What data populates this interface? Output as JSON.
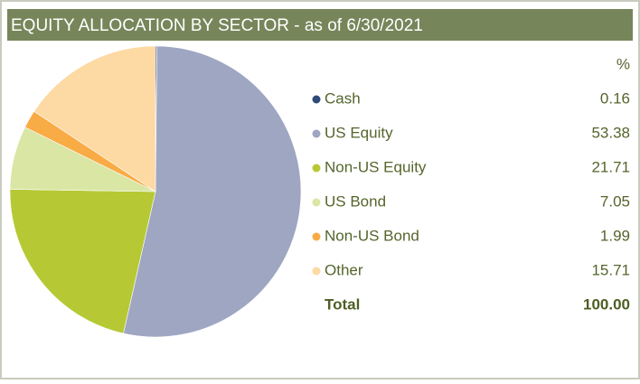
{
  "chart_data": {
    "type": "pie",
    "title": "EQUITY ALLOCATION BY SECTOR - as of 6/30/2021",
    "unit_header": "%",
    "categories": [
      "Cash",
      "US Equity",
      "Non-US Equity",
      "US Bond",
      "Non-US Bond",
      "Other"
    ],
    "values": [
      0.16,
      53.38,
      21.71,
      7.05,
      1.99,
      15.71
    ],
    "colors": [
      "#2e4a7a",
      "#9ea6c2",
      "#b6c935",
      "#d9e6a4",
      "#f9ab45",
      "#fdd9a3"
    ],
    "total_label": "Total",
    "total": {
      "value": 100,
      "label": "100.00"
    }
  }
}
